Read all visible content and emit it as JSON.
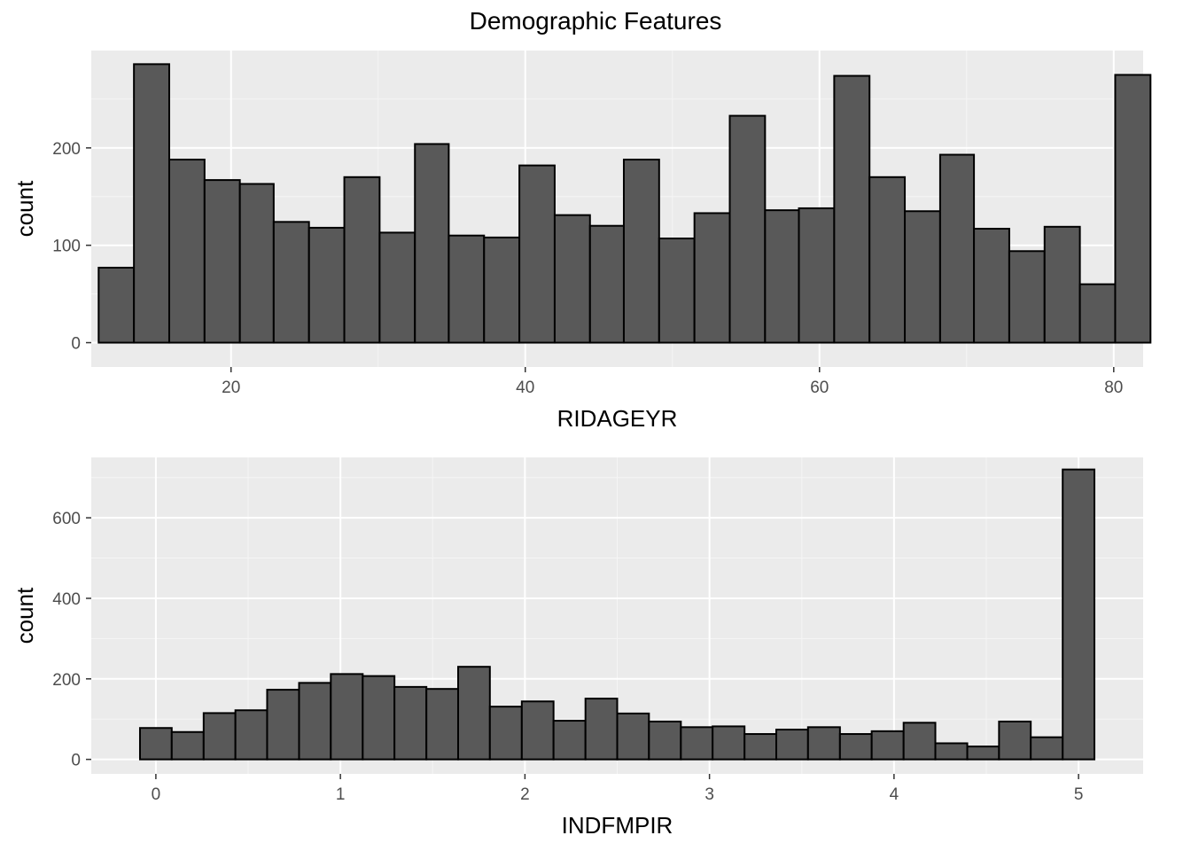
{
  "title": "Demographic Features",
  "colors": {
    "panel_bg": "#EBEBEB",
    "grid_major": "#FFFFFF",
    "grid_minor": "#F5F5F5",
    "bar_fill": "#595959",
    "bar_stroke": "#000000",
    "tick_color": "#333333"
  },
  "chart_data": [
    {
      "type": "bar",
      "subtype": "histogram",
      "xlabel": "RIDAGEYR",
      "ylabel": "count",
      "xlim": [
        10.5,
        82.0
      ],
      "ylim": [
        -25,
        300
      ],
      "xticks": [
        20,
        40,
        60,
        80
      ],
      "xtick_labels": [
        "20",
        "40",
        "60",
        "80"
      ],
      "yticks": [
        0,
        100,
        200
      ],
      "ytick_labels": [
        "0",
        "100",
        "200"
      ],
      "grid": true,
      "bins": [
        {
          "x0": 11.0,
          "x1": 13.4,
          "count": 77
        },
        {
          "x0": 13.4,
          "x1": 15.8,
          "count": 286
        },
        {
          "x0": 15.8,
          "x1": 18.2,
          "count": 188
        },
        {
          "x0": 18.2,
          "x1": 20.6,
          "count": 167
        },
        {
          "x0": 20.6,
          "x1": 22.9,
          "count": 163
        },
        {
          "x0": 22.9,
          "x1": 25.3,
          "count": 124
        },
        {
          "x0": 25.3,
          "x1": 27.7,
          "count": 118
        },
        {
          "x0": 27.7,
          "x1": 30.1,
          "count": 170
        },
        {
          "x0": 30.1,
          "x1": 32.5,
          "count": 113
        },
        {
          "x0": 32.5,
          "x1": 34.8,
          "count": 204
        },
        {
          "x0": 34.8,
          "x1": 37.2,
          "count": 110
        },
        {
          "x0": 37.2,
          "x1": 39.6,
          "count": 108
        },
        {
          "x0": 39.6,
          "x1": 42.0,
          "count": 182
        },
        {
          "x0": 42.0,
          "x1": 44.4,
          "count": 131
        },
        {
          "x0": 44.4,
          "x1": 46.7,
          "count": 120
        },
        {
          "x0": 46.7,
          "x1": 49.1,
          "count": 188
        },
        {
          "x0": 49.1,
          "x1": 51.5,
          "count": 107
        },
        {
          "x0": 51.5,
          "x1": 53.9,
          "count": 133
        },
        {
          "x0": 53.9,
          "x1": 56.3,
          "count": 233
        },
        {
          "x0": 56.3,
          "x1": 58.6,
          "count": 136
        },
        {
          "x0": 58.6,
          "x1": 61.0,
          "count": 138
        },
        {
          "x0": 61.0,
          "x1": 63.4,
          "count": 274
        },
        {
          "x0": 63.4,
          "x1": 65.8,
          "count": 170
        },
        {
          "x0": 65.8,
          "x1": 68.2,
          "count": 135
        },
        {
          "x0": 68.2,
          "x1": 70.5,
          "count": 193
        },
        {
          "x0": 70.5,
          "x1": 72.9,
          "count": 117
        },
        {
          "x0": 72.9,
          "x1": 75.3,
          "count": 94
        },
        {
          "x0": 75.3,
          "x1": 77.7,
          "count": 119
        },
        {
          "x0": 77.7,
          "x1": 80.1,
          "count": 60
        },
        {
          "x0": 80.1,
          "x1": 82.5,
          "count": 275
        }
      ]
    },
    {
      "type": "bar",
      "subtype": "histogram",
      "xlabel": "INDFMPIR",
      "ylabel": "count",
      "xlim": [
        -0.35,
        5.35
      ],
      "ylim": [
        -36,
        750
      ],
      "xticks": [
        0,
        1,
        2,
        3,
        4,
        5
      ],
      "xtick_labels": [
        "0",
        "1",
        "2",
        "3",
        "4",
        "5"
      ],
      "yticks": [
        0,
        200,
        400,
        600
      ],
      "ytick_labels": [
        "0",
        "200",
        "400",
        "600"
      ],
      "grid": true,
      "bins": [
        {
          "x0": -0.086,
          "x1": 0.086,
          "count": 78
        },
        {
          "x0": 0.086,
          "x1": 0.259,
          "count": 68
        },
        {
          "x0": 0.259,
          "x1": 0.431,
          "count": 115
        },
        {
          "x0": 0.431,
          "x1": 0.603,
          "count": 122
        },
        {
          "x0": 0.603,
          "x1": 0.776,
          "count": 173
        },
        {
          "x0": 0.776,
          "x1": 0.948,
          "count": 190
        },
        {
          "x0": 0.948,
          "x1": 1.121,
          "count": 212
        },
        {
          "x0": 1.121,
          "x1": 1.293,
          "count": 207
        },
        {
          "x0": 1.293,
          "x1": 1.466,
          "count": 180
        },
        {
          "x0": 1.466,
          "x1": 1.638,
          "count": 175
        },
        {
          "x0": 1.638,
          "x1": 1.81,
          "count": 230
        },
        {
          "x0": 1.81,
          "x1": 1.983,
          "count": 131
        },
        {
          "x0": 1.983,
          "x1": 2.155,
          "count": 144
        },
        {
          "x0": 2.155,
          "x1": 2.328,
          "count": 96
        },
        {
          "x0": 2.328,
          "x1": 2.5,
          "count": 151
        },
        {
          "x0": 2.5,
          "x1": 2.672,
          "count": 114
        },
        {
          "x0": 2.672,
          "x1": 2.845,
          "count": 94
        },
        {
          "x0": 2.845,
          "x1": 3.017,
          "count": 80
        },
        {
          "x0": 3.017,
          "x1": 3.19,
          "count": 82
        },
        {
          "x0": 3.19,
          "x1": 3.362,
          "count": 63
        },
        {
          "x0": 3.362,
          "x1": 3.534,
          "count": 74
        },
        {
          "x0": 3.534,
          "x1": 3.707,
          "count": 80
        },
        {
          "x0": 3.707,
          "x1": 3.879,
          "count": 63
        },
        {
          "x0": 3.879,
          "x1": 4.052,
          "count": 70
        },
        {
          "x0": 4.052,
          "x1": 4.224,
          "count": 91
        },
        {
          "x0": 4.224,
          "x1": 4.397,
          "count": 40
        },
        {
          "x0": 4.397,
          "x1": 4.569,
          "count": 32
        },
        {
          "x0": 4.569,
          "x1": 4.741,
          "count": 94
        },
        {
          "x0": 4.741,
          "x1": 4.914,
          "count": 55
        },
        {
          "x0": 4.914,
          "x1": 5.086,
          "count": 720
        }
      ]
    }
  ]
}
